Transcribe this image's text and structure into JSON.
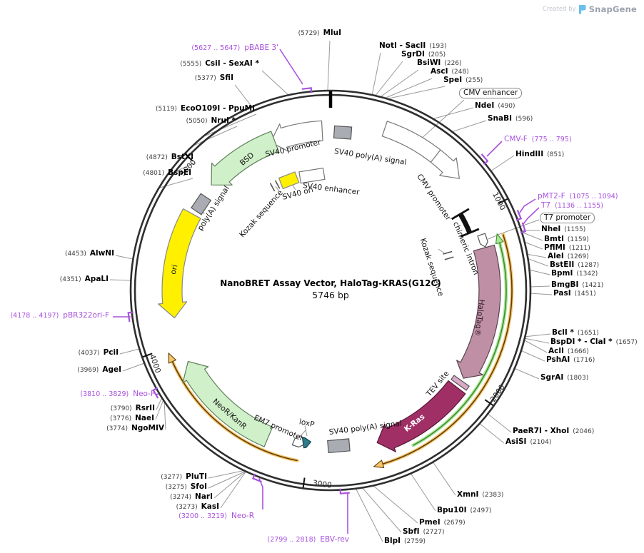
{
  "credit": {
    "prefix": "Created by",
    "brand": "SnapGene"
  },
  "plasmid": {
    "title": "NanoBRET Assay Vector, HaloTag-KRAS(G12C)",
    "length": "5746 bp"
  },
  "tick_labels": [
    "1000",
    "2000",
    "3000",
    "4000",
    "5000"
  ],
  "enzyme_sites": [
    {
      "n": "MluI",
      "p": "(5729)"
    },
    {
      "n": "CsiI - SexAI *",
      "p": "(5555)"
    },
    {
      "n": "SfiI",
      "p": "(5377)"
    },
    {
      "n": "EcoO109I - PpuMI",
      "p": "(5119)"
    },
    {
      "n": "NruI *",
      "p": "(5050)"
    },
    {
      "n": "BstXI",
      "p": "(4872)"
    },
    {
      "n": "BspEI",
      "p": "(4801)"
    },
    {
      "n": "AlwNI",
      "p": "(4453)"
    },
    {
      "n": "ApaLI",
      "p": "(4351)"
    },
    {
      "n": "PciI",
      "p": "(4037)"
    },
    {
      "n": "AgeI",
      "p": "(3969)"
    },
    {
      "n": "RsrII",
      "p": "(3790)"
    },
    {
      "n": "NaeI",
      "p": "(3776)"
    },
    {
      "n": "NgoMIV",
      "p": "(3774)"
    },
    {
      "n": "PluTI",
      "p": "(3277)"
    },
    {
      "n": "SfoI",
      "p": "(3275)"
    },
    {
      "n": "NarI",
      "p": "(3274)"
    },
    {
      "n": "KasI",
      "p": "(3273)"
    },
    {
      "n": "NotI - SacII",
      "p": "(193)"
    },
    {
      "n": "SgrDI",
      "p": "(205)"
    },
    {
      "n": "BsiWI",
      "p": "(226)"
    },
    {
      "n": "AscI",
      "p": "(248)"
    },
    {
      "n": "SpeI",
      "p": "(255)"
    },
    {
      "n": "NdeI",
      "p": "(490)"
    },
    {
      "n": "SnaBI",
      "p": "(596)"
    },
    {
      "n": "HindIII",
      "p": "(851)"
    },
    {
      "n": "NheI",
      "p": "(1155)"
    },
    {
      "n": "BmtI",
      "p": "(1159)"
    },
    {
      "n": "PflMI",
      "p": "(1211)"
    },
    {
      "n": "AleI",
      "p": "(1269)"
    },
    {
      "n": "BstEII",
      "p": "(1287)"
    },
    {
      "n": "BpmI",
      "p": "(1342)"
    },
    {
      "n": "BmgBI",
      "p": "(1421)"
    },
    {
      "n": "PasI",
      "p": "(1451)"
    },
    {
      "n": "BclI *",
      "p": "(1651)"
    },
    {
      "n": "BspDI * - ClaI *",
      "p": "(1657)"
    },
    {
      "n": "AclI",
      "p": "(1666)"
    },
    {
      "n": "PshAI",
      "p": "(1716)"
    },
    {
      "n": "SgrAI",
      "p": "(1803)"
    },
    {
      "n": "PaeR7I - XhoI",
      "p": "(2046)"
    },
    {
      "n": "AsiSI",
      "p": "(2104)"
    },
    {
      "n": "XmnI",
      "p": "(2383)"
    },
    {
      "n": "Bpu10I",
      "p": "(2497)"
    },
    {
      "n": "PmeI",
      "p": "(2679)"
    },
    {
      "n": "SbfI",
      "p": "(2727)"
    },
    {
      "n": "BlpI",
      "p": "(2759)"
    }
  ],
  "primers": [
    {
      "n": "pBABE 3'",
      "r": "(5627 .. 5647)"
    },
    {
      "n": "CMV-F",
      "r": "(775 .. 795)"
    },
    {
      "n": "pMT2-F",
      "r": "(1075 .. 1094)"
    },
    {
      "n": "T7",
      "r": "(1136 .. 1155)"
    },
    {
      "n": "Neo-R",
      "r": "(3200 .. 3219)"
    },
    {
      "n": "EBV-rev",
      "r": "(2799 .. 2818)"
    },
    {
      "n": "Neo-F",
      "r": "(3810 .. 3829)"
    },
    {
      "n": "pBR322ori-F",
      "r": "(4178 .. 4197)"
    }
  ],
  "features": {
    "cmv_enhancer": "CMV enhancer",
    "t7_promoter": "T7 promoter",
    "sv40_promoter": "SV40 promoter",
    "sv40_polya_top": "SV40 poly(A) signal",
    "cmv_promoter": "CMV promoter",
    "chimeric_intron": "chimeric intron",
    "kozak_right": "Kozak sequence",
    "halotag": "HaloTag®",
    "tev_site": "TEV site",
    "kras": "K-Ras",
    "sv40_polya_bottom": "SV40 poly(A) signal",
    "loxp": "loxP",
    "em7_promoter": "EM7 promoter",
    "neor_kanr": "NeoR/KanR",
    "ori": "ori",
    "polya_signal": "poly(A) signal",
    "bsd": "BSD",
    "kozak_left": "Kozak sequence",
    "sv40_enhancer": "SV40 enhancer",
    "sv40_ori": "SV40 ori"
  },
  "colors": {
    "backbone": "#2F2F2F",
    "leader_line": "#999999",
    "primer_purple": "#A852DE",
    "cds_green": "#CFF0C8",
    "cds_green_stroke": "#5F7F5A",
    "yellow": "#FFF000",
    "halotag_mauve": "#BE8FA5",
    "kras_magenta": "#A02F66",
    "gray_box": "#A9ADB3",
    "loxp_teal": "#2E7B8C",
    "orf_green_halo": "#ABE69A",
    "orf_green_core": "#3F8F2A",
    "orf_orange_halo": "#F7C468",
    "orf_orange_core": "#5E3E0C"
  }
}
